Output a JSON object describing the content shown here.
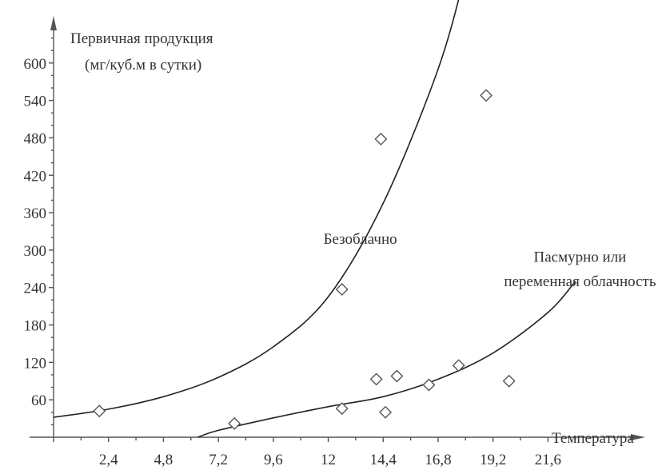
{
  "chart_data": {
    "type": "scatter",
    "ylabel_line1": "Первичная продукция",
    "ylabel_line2": "(мг/куб.м в сутки)",
    "xlabel": "Температура",
    "xlim": [
      0,
      25.5
    ],
    "ylim": [
      0,
      660
    ],
    "x_ticks": [
      "2,4",
      "4,8",
      "7,2",
      "9,6",
      "12",
      "14,4",
      "16,8",
      "19,2",
      "21,6"
    ],
    "x_tick_values": [
      2.4,
      4.8,
      7.2,
      9.6,
      12,
      14.4,
      16.8,
      19.2,
      21.6
    ],
    "y_ticks": [
      "60",
      "120",
      "180",
      "240",
      "300",
      "360",
      "420",
      "480",
      "540",
      "600"
    ],
    "y_tick_values": [
      60,
      120,
      180,
      240,
      300,
      360,
      420,
      480,
      540,
      600
    ],
    "grid": false,
    "points": [
      {
        "x": 2.0,
        "y": 42
      },
      {
        "x": 7.9,
        "y": 22
      },
      {
        "x": 12.6,
        "y": 237
      },
      {
        "x": 12.6,
        "y": 46
      },
      {
        "x": 14.1,
        "y": 93
      },
      {
        "x": 14.3,
        "y": 478
      },
      {
        "x": 14.5,
        "y": 40
      },
      {
        "x": 15.0,
        "y": 98
      },
      {
        "x": 16.4,
        "y": 84
      },
      {
        "x": 17.7,
        "y": 115
      },
      {
        "x": 18.9,
        "y": 548
      },
      {
        "x": 19.9,
        "y": 90
      }
    ],
    "series": [
      {
        "name": "Безоблачно",
        "color": "#222222",
        "curve": [
          [
            0,
            32
          ],
          [
            2.4,
            45
          ],
          [
            4.8,
            65
          ],
          [
            7.2,
            96
          ],
          [
            9.6,
            145
          ],
          [
            12,
            225
          ],
          [
            14.4,
            375
          ],
          [
            16.8,
            590
          ],
          [
            18.0,
            745
          ]
        ]
      },
      {
        "name": "Пасмурно или переменная облачность",
        "color": "#222222",
        "curve": [
          [
            6.3,
            0
          ],
          [
            7.2,
            11
          ],
          [
            9.6,
            31
          ],
          [
            12,
            49
          ],
          [
            14.4,
            65
          ],
          [
            16.8,
            93
          ],
          [
            19.2,
            135
          ],
          [
            21.6,
            200
          ],
          [
            22.8,
            250
          ]
        ]
      }
    ],
    "annotations": [
      {
        "text": "Безоблачно",
        "x": 13.4,
        "y": 310
      },
      {
        "text": "Пасмурно или",
        "x": 23.0,
        "y": 281
      },
      {
        "text": "переменная облачность",
        "x": 23.0,
        "y": 242
      }
    ]
  }
}
